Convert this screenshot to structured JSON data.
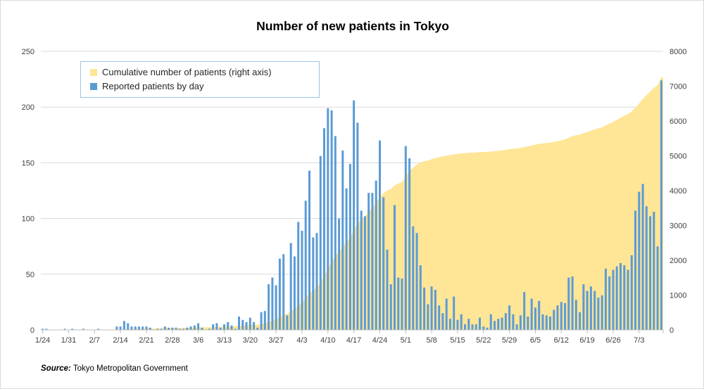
{
  "page": {
    "title": "Number of new patients in Tokyo"
  },
  "chart_data": {
    "type": "combo",
    "title": "Number of new patients in Tokyo",
    "x_tick_labels": [
      "1/24",
      "1/31",
      "2/7",
      "2/14",
      "2/21",
      "2/28",
      "3/6",
      "3/13",
      "3/20",
      "3/27",
      "4/3",
      "4/10",
      "4/17",
      "4/24",
      "5/1",
      "5/8",
      "5/15",
      "5/22",
      "5/29",
      "6/5",
      "6/12",
      "6/19",
      "6/26",
      "7/3"
    ],
    "x_tick_interval_days": 7,
    "left_axis": {
      "min": 0,
      "max": 250,
      "step": 50,
      "ticks": [
        0,
        50,
        100,
        150,
        200,
        250
      ]
    },
    "right_axis": {
      "min": 0,
      "max": 8000,
      "step": 1000,
      "ticks": [
        0,
        1000,
        2000,
        3000,
        4000,
        5000,
        6000,
        7000,
        8000
      ]
    },
    "grid": "horizontal-left-axis-steps",
    "legend_position": "inside-top-left",
    "series": [
      {
        "name": "Cumulative number of patients (right axis)",
        "type": "area",
        "axis": "right",
        "color": "#ffe596",
        "values_rule": "cumulative_sum_of_daily_series",
        "final_value": 7252
      },
      {
        "name": "Reported patients by day",
        "type": "bar",
        "axis": "left",
        "color": "#5b9bd5",
        "values": [
          1,
          1,
          0,
          0,
          0,
          0,
          1,
          0,
          1,
          0,
          0,
          1,
          0,
          0,
          0,
          1,
          0,
          0,
          0,
          0,
          3,
          3,
          8,
          6,
          3,
          3,
          3,
          3,
          3,
          2,
          0,
          1,
          1,
          3,
          2,
          2,
          2,
          1,
          1,
          2,
          3,
          4,
          6,
          2,
          0,
          1,
          5,
          6,
          2,
          5,
          7,
          4,
          1,
          12,
          9,
          7,
          11,
          7,
          2,
          16,
          17,
          41,
          47,
          40,
          64,
          68,
          13,
          78,
          66,
          97,
          89,
          116,
          143,
          83,
          87,
          156,
          181,
          199,
          197,
          174,
          100,
          161,
          127,
          149,
          206,
          186,
          107,
          102,
          123,
          123,
          134,
          170,
          119,
          72,
          41,
          112,
          47,
          46,
          165,
          154,
          93,
          87,
          58,
          38,
          23,
          39,
          36,
          22,
          15,
          28,
          10,
          30,
          9,
          14,
          5,
          10,
          5,
          5,
          11,
          3,
          2,
          14,
          8,
          10,
          11,
          15,
          22,
          14,
          5,
          13,
          34,
          12,
          28,
          20,
          26,
          14,
          13,
          12,
          18,
          22,
          25,
          24,
          47,
          48,
          27,
          16,
          41,
          35,
          39,
          35,
          29,
          31,
          55,
          48,
          54,
          57,
          60,
          58,
          54,
          67,
          107,
          124,
          131,
          111,
          102,
          106,
          75,
          224
        ]
      }
    ]
  },
  "legend": {
    "items": [
      {
        "label": "Cumulative number of patients (right axis)",
        "color": "#ffe596"
      },
      {
        "label": "Reported patients by day",
        "color": "#5b9bd5"
      }
    ]
  },
  "source": {
    "label": "Source:",
    "text": " Tokyo Metropolitan Government"
  },
  "colors": {
    "bar_blue": "#5b9bd5",
    "area_yellow": "#ffe596",
    "gridline": "#d9d9d9",
    "axis_line": "#bfbfbf",
    "axis_label": "#404040",
    "legend_border": "#9dc3e6"
  }
}
